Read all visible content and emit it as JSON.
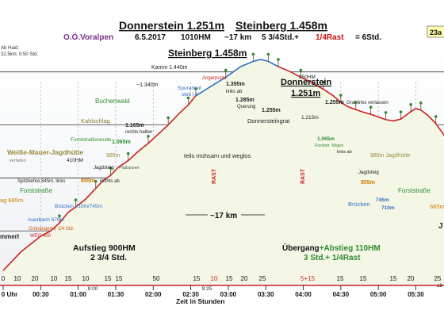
{
  "header": {
    "title_part1": "Donnerstein 1.251m",
    "title_part2": "Steinberg 1.458m",
    "region": "O.Ö.Voralpen",
    "date": "6.5.2017",
    "ascent": "1010HM",
    "distance": "~17 km",
    "duration": "5 3/4Std.+",
    "rest": "1/4Rast",
    "total": "= 6Std.",
    "corner_tag": "23a"
  },
  "left_note": [
    "Ab Haid:",
    "32,5km; 0:50 Std."
  ],
  "chart_data": {
    "type": "line",
    "title": "Donnerstein 1.251m Steinberg 1.458m",
    "xlabel": "Zeit in Stunden",
    "ylabel": "",
    "x_unit": "h:mm",
    "xlim": [
      "0:00",
      "5:50"
    ],
    "ylim": [
      600,
      1480
    ],
    "grid": true,
    "gridlines_y": [
      800,
      1000,
      1200,
      1400
    ],
    "series": [
      {
        "color": "#cc2222",
        "points": [
          [
            0,
            650
          ],
          [
            8,
            690
          ],
          [
            14,
            720
          ],
          [
            22,
            750
          ],
          [
            30,
            780
          ],
          [
            38,
            800
          ],
          [
            45,
            830
          ],
          [
            52,
            870
          ],
          [
            58,
            890
          ],
          [
            66,
            920
          ],
          [
            74,
            960
          ],
          [
            80,
            990
          ],
          [
            86,
            1010
          ],
          [
            92,
            1040
          ],
          [
            100,
            1065
          ],
          [
            108,
            1100
          ],
          [
            116,
            1130
          ],
          [
            124,
            1165
          ],
          [
            132,
            1200
          ],
          [
            140,
            1240
          ],
          [
            148,
            1275
          ],
          [
            154,
            1310
          ]
        ]
      },
      {
        "color": "#2e6fc4",
        "points": [
          [
            154,
            1310
          ],
          [
            166,
            1345
          ],
          [
            178,
            1380
          ],
          [
            190,
            1420
          ],
          [
            200,
            1440
          ],
          [
            206,
            1447
          ],
          [
            212,
            1440
          ],
          [
            220,
            1420
          ]
        ]
      },
      {
        "color": "#cc2222",
        "points": [
          [
            220,
            1420
          ],
          [
            230,
            1400
          ],
          [
            238,
            1380
          ],
          [
            246,
            1362
          ],
          [
            256,
            1335
          ],
          [
            264,
            1310
          ],
          [
            270,
            1285
          ],
          [
            276,
            1268
          ],
          [
            282,
            1258
          ],
          [
            288,
            1248
          ],
          [
            294,
            1240
          ],
          [
            300,
            1230
          ],
          [
            306,
            1220
          ],
          [
            312,
            1215
          ],
          [
            318,
            1222
          ],
          [
            322,
            1236
          ],
          [
            326,
            1250
          ],
          [
            330,
            1262
          ],
          [
            334,
            1256
          ],
          [
            340,
            1235
          ],
          [
            346,
            1205
          ],
          [
            352,
            1165
          ],
          [
            358,
            1120
          ],
          [
            364,
            1080
          ],
          [
            372,
            1065
          ],
          [
            380,
            1030
          ],
          [
            388,
            1000
          ],
          [
            396,
            985
          ],
          [
            404,
            965
          ],
          [
            412,
            940
          ],
          [
            420,
            915
          ],
          [
            428,
            885
          ],
          [
            436,
            855
          ],
          [
            446,
            820
          ],
          [
            456,
            790
          ],
          [
            466,
            760
          ],
          [
            474,
            745
          ],
          [
            482,
            730
          ],
          [
            490,
            722
          ],
          [
            498,
            716
          ],
          [
            506,
            712
          ],
          [
            512,
            710
          ],
          [
            518,
            705
          ],
          [
            524,
            700
          ],
          [
            530,
            695
          ],
          [
            536,
            690
          ],
          [
            542,
            686
          ],
          [
            548,
            683
          ],
          [
            556,
            680
          ]
        ]
      }
    ],
    "ticks_bottom_row1": [
      "0",
      "10",
      "20",
      "10",
      "15",
      "10",
      "15",
      "15",
      "50",
      "15",
      "10",
      "15",
      "20",
      "25",
      "5+15",
      "15",
      "15",
      "15",
      "20",
      "25"
    ],
    "ticks_bottom_row2": [
      "0 Uhr",
      "00:30",
      "01:00",
      "01:30",
      "02:00",
      "02:30",
      "03:00",
      "03:30",
      "04:00",
      "04:30",
      "05:00",
      "05:30"
    ],
    "mid_times": [
      "8:00",
      "9:25"
    ],
    "annotations": {
      "steinberg": "Steinberg 1.458m",
      "donnerstein_line1": "Donnerstein",
      "donnerstein_line2": "1.251m",
      "kamm": "Kamm 1.440m",
      "about_1340": "~1.340m",
      "spurarbeit": "Spurarbeit",
      "steil": "steil I-II",
      "angerpunkt": "Angerpunkt",
      "m1395": "1.395m",
      "links_ab": "links ab",
      "m1285": "1.285m",
      "querung": "Querung",
      "m1255a": "1.255m",
      "m1255b": "1.255m",
      "grat_links": "Grat links verlassen",
      "m1215": "1.215m",
      "donnersteingrat": "Donnersteingrat",
      "m950": "950HM",
      "buchenwald": "Buchenwald",
      "kahlschlag": "Kahlschlag",
      "m1165": "1.165m",
      "rechts_halten": "rechts halten",
      "forststrassenende": "Forststraßenende",
      "m1065a": "1.065m",
      "m1065b": "1.065m",
      "forststr_folgen": "Forststr. folgen",
      "links_ab2": "links ab",
      "weisse_mauer": "Weiße-Mauer-Jagdhütte",
      "verfallen": "verfallen",
      "m985a": "985m",
      "m985b": "985m Jagdhütte",
      "m410": "410HM",
      "teils": "teils mühsam und weglos",
      "spitzkehre": "Spitzkehre 845m, links",
      "jagdsteig1": "Jagdsteig",
      "pfadspuren": "Pfadspuren",
      "m855": "855m",
      "rechts_ab": "rechts ab",
      "jagdsteig2": "Jagdsteig",
      "m855b": "855m",
      "forststrasse1": "Forststraße",
      "forststrasse2": "Forststraße",
      "bruecken1": "Brücken 710m/745m",
      "bruecken2": "Brücken",
      "m745": "745m",
      "m710": "710m",
      "m685a": "ag 685m",
      "m685b": "685m",
      "auerbach": "Auerbach 670m",
      "gruenangerl": "Grünangerl 2 1/4 Std.",
      "weg400": "WEG 400",
      "m410b": "410HM",
      "mmerl": "mmerl",
      "rast1": "RAST",
      "rast2": "RAST",
      "km17": "~17 km",
      "aufstieg_line1": "Aufstieg 900HM",
      "aufstieg_line2": "2 3/4 Std.",
      "uebergang_prefix": "Übergang",
      "uebergang_suffix": "+Abstieg 110HM",
      "std_line": "3 Std.+ 1/4Rast",
      "edge_right": "ab",
      "edge_j": "J"
    }
  }
}
